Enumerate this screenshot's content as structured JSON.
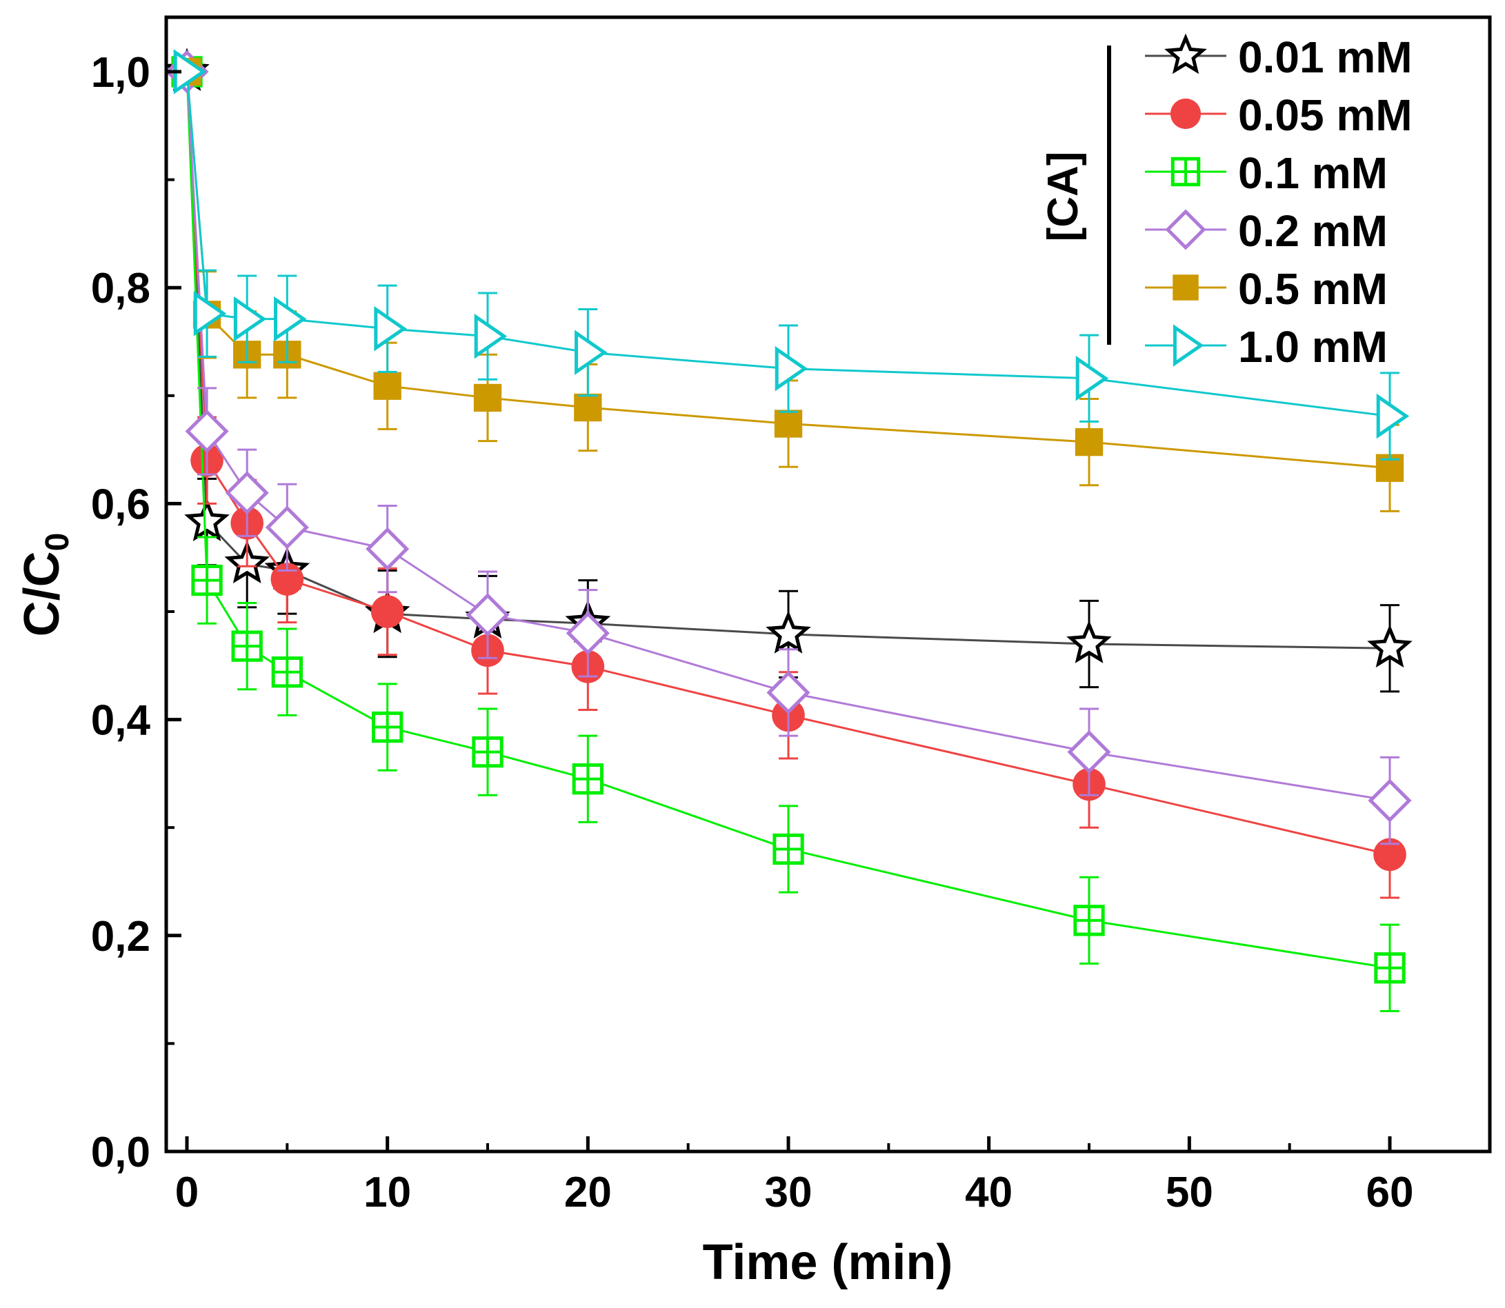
{
  "chart_data": {
    "type": "line",
    "title": "",
    "xlabel": "Time (min)",
    "ylabel": "C/C",
    "ylabel_subscript": "0",
    "xlim": [
      -1,
      65
    ],
    "ylim": [
      0,
      1.05
    ],
    "xticks": [
      0,
      10,
      20,
      30,
      40,
      50,
      60
    ],
    "xtick_labels": [
      "0",
      "10",
      "20",
      "30",
      "40",
      "50",
      "60"
    ],
    "yticks": [
      0,
      0.2,
      0.4,
      0.6,
      0.8,
      1.0
    ],
    "ytick_labels": [
      "0,0",
      "0,2",
      "0,4",
      "0,6",
      "0,8",
      "1,0"
    ],
    "grid": false,
    "legend_title": "[CA]",
    "legend_position": "top-right",
    "x": [
      0,
      1,
      3,
      5,
      10,
      15,
      20,
      30,
      45,
      60
    ],
    "series": [
      {
        "name": "0.01 mM",
        "marker": "star",
        "color": "#000000",
        "line_color": "#4a4a4a",
        "values": [
          1.0,
          0.583,
          0.544,
          0.538,
          0.498,
          0.493,
          0.489,
          0.479,
          0.47,
          0.466
        ],
        "error": 0.04
      },
      {
        "name": "0.05 mM",
        "marker": "circle",
        "color": "#ef4343",
        "line_color": "#ef4343",
        "values": [
          1.0,
          0.64,
          0.582,
          0.53,
          0.5,
          0.464,
          0.449,
          0.404,
          0.34,
          0.275
        ],
        "error": 0.04
      },
      {
        "name": "0.1 mM",
        "marker": "square-cross",
        "color": "#00ee00",
        "line_color": "#00ee00",
        "values": [
          1.0,
          0.529,
          0.468,
          0.444,
          0.393,
          0.37,
          0.345,
          0.28,
          0.214,
          0.17
        ],
        "error": 0.04
      },
      {
        "name": "0.2 mM",
        "marker": "diamond",
        "color": "#b07ad8",
        "line_color": "#b07ad8",
        "values": [
          1.0,
          0.667,
          0.61,
          0.578,
          0.558,
          0.497,
          0.48,
          0.425,
          0.37,
          0.325
        ],
        "error": 0.04
      },
      {
        "name": "0.5 mM",
        "marker": "square",
        "color": "#cc9900",
        "line_color": "#cc9900",
        "values": [
          1.0,
          0.775,
          0.738,
          0.738,
          0.709,
          0.698,
          0.689,
          0.674,
          0.657,
          0.633
        ],
        "error": 0.04
      },
      {
        "name": "1.0 mM",
        "marker": "triangle-right",
        "color": "#10c8cc",
        "line_color": "#10c8cc",
        "values": [
          1.0,
          0.776,
          0.771,
          0.771,
          0.762,
          0.755,
          0.74,
          0.725,
          0.716,
          0.681
        ],
        "error": 0.04
      }
    ]
  }
}
